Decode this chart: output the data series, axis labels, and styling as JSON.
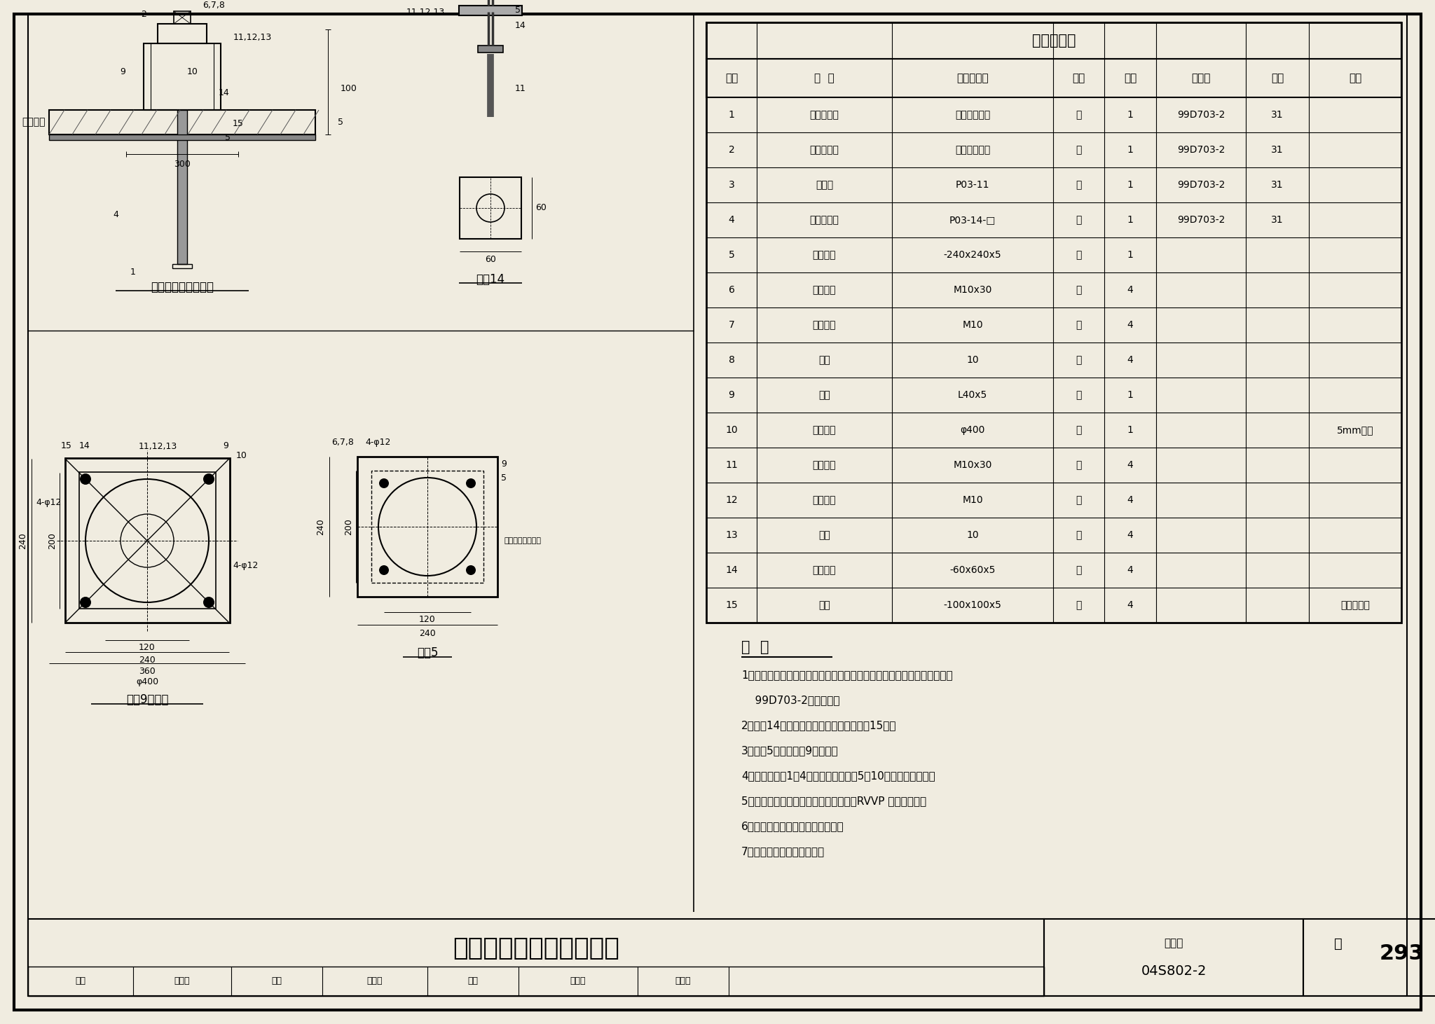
{
  "title": "电极式液位计支架安装图",
  "atlas_no": "04S802-2",
  "page": "293",
  "bg_color": "#f0ece0",
  "table_title": "设备材料表",
  "table_headers": [
    "序号",
    "名  称",
    "型号及规格",
    "单位",
    "数量",
    "标准图",
    "页次",
    "附注"
  ],
  "table_data": [
    [
      "1",
      "电极液位计",
      "工程设计确定",
      "套",
      "1",
      "99D703-2",
      "31",
      ""
    ],
    [
      "2",
      "电极保持器",
      "工程设计确定",
      "个",
      "1",
      "99D703-2",
      "31",
      ""
    ],
    [
      "3",
      "防护盖",
      "P03-11",
      "个",
      "1",
      "99D703-2",
      "31",
      ""
    ],
    [
      "4",
      "电极分离器",
      "P03-14-□",
      "个",
      "1",
      "99D703-2",
      "31",
      ""
    ],
    [
      "5",
      "安装配件",
      "-240x240x5",
      "块",
      "1",
      "",
      "",
      ""
    ],
    [
      "6",
      "六角螺栓",
      "M10x30",
      "个",
      "4",
      "",
      "",
      ""
    ],
    [
      "7",
      "六角螺母",
      "M10",
      "个",
      "4",
      "",
      "",
      ""
    ],
    [
      "8",
      "垫圈",
      "10",
      "个",
      "4",
      "",
      "",
      ""
    ],
    [
      "9",
      "支架",
      "L40x5",
      "套",
      "1",
      "",
      "",
      ""
    ],
    [
      "10",
      "安装配件",
      "φ400",
      "件",
      "1",
      "",
      "",
      "5mm钢板"
    ],
    [
      "11",
      "双头螺栓",
      "M10x30",
      "个",
      "4",
      "",
      "",
      ""
    ],
    [
      "12",
      "六角螺母",
      "M10",
      "个",
      "4",
      "",
      "",
      ""
    ],
    [
      "13",
      "垫圈",
      "10",
      "个",
      "4",
      "",
      "",
      ""
    ],
    [
      "14",
      "安装配件",
      "-60x60x5",
      "件",
      "4",
      "",
      "",
      ""
    ],
    [
      "15",
      "锚件",
      "-100x100x5",
      "块",
      "4",
      "",
      "",
      "土建已预埋"
    ]
  ],
  "notes_title": "说  明",
  "notes": [
    "1、电极式液位计在水塔内人井平台上用支架安装时用本图，并与标准图集",
    "    99D703-2配合使用。",
    "2、序号14安装配件现场焊接在土建预埋件15上。",
    "3、序号5安装在序号9支架上。",
    "4、液位计序号1、4穿过安装配件序号5、10，自然沉入水中。",
    "5、从控制地点送到液位计信号线，采用RVVP 型屏蔽电缆。",
    "6、必须保证液位计安装的垂直度。",
    "7、安装支架应作防腐处理。"
  ],
  "drawing_label1": "电极式液位计安装图",
  "drawing_label2": "零件14",
  "drawing_label3": "支架9大样图",
  "drawing_label4": "配件5"
}
